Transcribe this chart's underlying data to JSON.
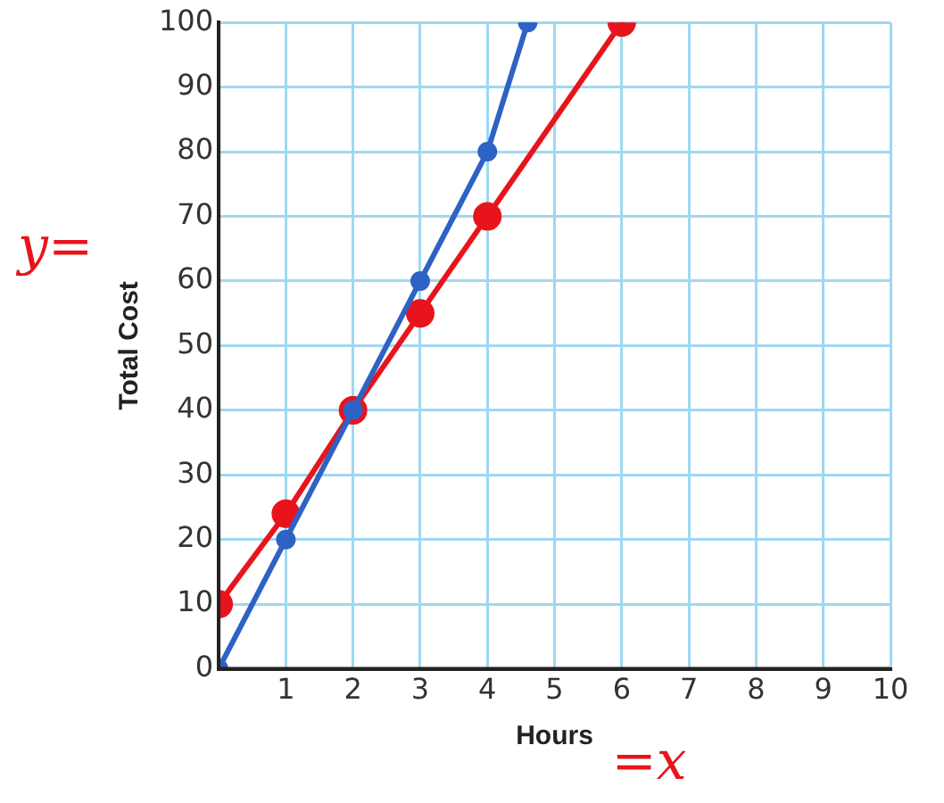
{
  "chart_data": {
    "type": "line",
    "xlabel": "Hours",
    "ylabel": "Total Cost",
    "annotations": [
      "y=",
      "=x"
    ],
    "xlim": [
      0,
      10
    ],
    "xticks": [
      {
        "value": 0,
        "label": null
      },
      1,
      2,
      3,
      4,
      5,
      6,
      7,
      8,
      9,
      10
    ],
    "ylim": [
      0,
      100
    ],
    "yticks": [
      0,
      10,
      20,
      30,
      40,
      50,
      60,
      70,
      80,
      90,
      100
    ],
    "grid": true,
    "marker": "circle",
    "line_style": "solid",
    "series": [
      {
        "color": "#2e62c4",
        "x": [
          0,
          1,
          2,
          3,
          4,
          4.6
        ],
        "values": [
          0,
          20,
          40,
          60,
          80,
          100
        ]
      },
      {
        "color": "#e8141c",
        "x": [
          0,
          1,
          2,
          3,
          4,
          6
        ],
        "values": [
          10,
          24,
          40,
          55,
          70,
          100
        ]
      }
    ]
  }
}
